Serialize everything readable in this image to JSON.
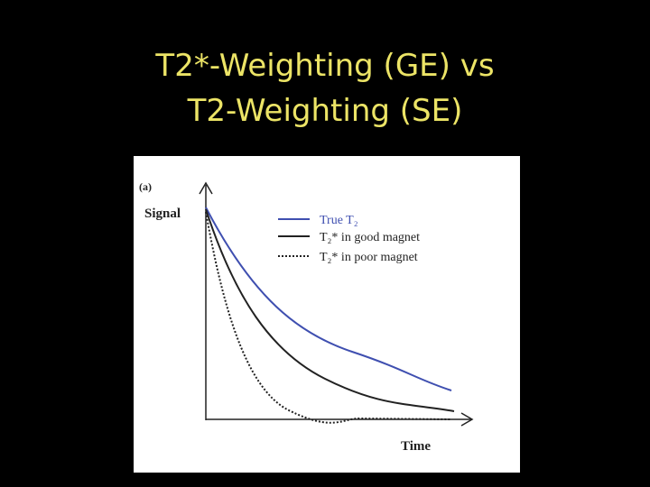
{
  "title": {
    "lines": [
      "T2*-Weighting (GE) vs",
      "T2-Weighting (SE)"
    ]
  },
  "figure": {
    "panel_label": "(a)",
    "y_axis_label": "Signal",
    "x_axis_label": "Time",
    "legend": [
      "True T₂",
      "T₂* in good magnet",
      "T₂* in poor magnet"
    ]
  }
}
